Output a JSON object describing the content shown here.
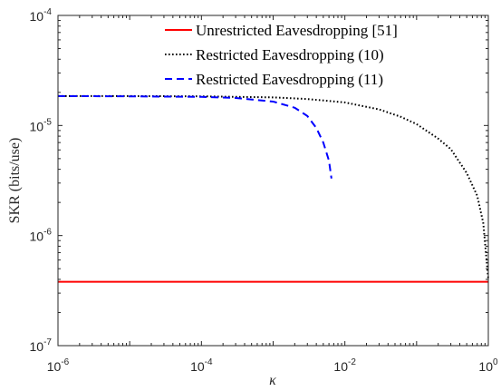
{
  "chart_data": {
    "type": "line",
    "title": "",
    "xlabel": "κ",
    "ylabel": "SKR (bits/use)",
    "xscale": "log",
    "yscale": "log",
    "xlim": [
      1e-06,
      1
    ],
    "ylim": [
      1e-07,
      0.0001
    ],
    "grid": false,
    "legend_position": "top-right",
    "x_ticks": [
      {
        "base": "10",
        "exp": "-6"
      },
      {
        "base": "10",
        "exp": "-4"
      },
      {
        "base": "10",
        "exp": "-2"
      },
      {
        "base": "10",
        "exp": "0"
      }
    ],
    "y_ticks": [
      {
        "base": "10",
        "exp": "-7"
      },
      {
        "base": "10",
        "exp": "-6"
      },
      {
        "base": "10",
        "exp": "-5"
      },
      {
        "base": "10",
        "exp": "-4"
      }
    ],
    "series": [
      {
        "name": "Unrestricted Eavesdropping [51]",
        "color": "#ff0000",
        "style": "solid",
        "x": [
          1e-06,
          1e-05,
          0.0001,
          0.001,
          0.01,
          0.1,
          1
        ],
        "y": [
          3.8e-07,
          3.8e-07,
          3.8e-07,
          3.8e-07,
          3.8e-07,
          3.8e-07,
          3.8e-07
        ]
      },
      {
        "name": "Restricted Eavesdropping (10)",
        "color": "#000000",
        "style": "dotted",
        "x": [
          1e-06,
          1e-05,
          0.0001,
          0.001,
          0.003,
          0.01,
          0.03,
          0.06,
          0.1,
          0.2,
          0.3,
          0.5,
          0.7,
          0.85,
          1.0
        ],
        "y": [
          1.85e-05,
          1.85e-05,
          1.84e-05,
          1.8e-05,
          1.74e-05,
          1.62e-05,
          1.4e-05,
          1.2e-05,
          1.03e-05,
          7.6e-06,
          6.1e-06,
          3.7e-06,
          2.3e-06,
          1.3e-06,
          4e-07
        ]
      },
      {
        "name": "Restricted Eavesdropping (11)",
        "color": "#0000ff",
        "style": "dashed",
        "x": [
          1e-06,
          1e-05,
          0.0001,
          0.0003,
          0.001,
          0.002,
          0.003,
          0.004,
          0.005,
          0.006,
          0.0065
        ],
        "y": [
          1.85e-05,
          1.84e-05,
          1.82e-05,
          1.78e-05,
          1.65e-05,
          1.45e-05,
          1.22e-05,
          9.5e-06,
          7e-06,
          4.8e-06,
          3.3e-06
        ]
      }
    ]
  }
}
